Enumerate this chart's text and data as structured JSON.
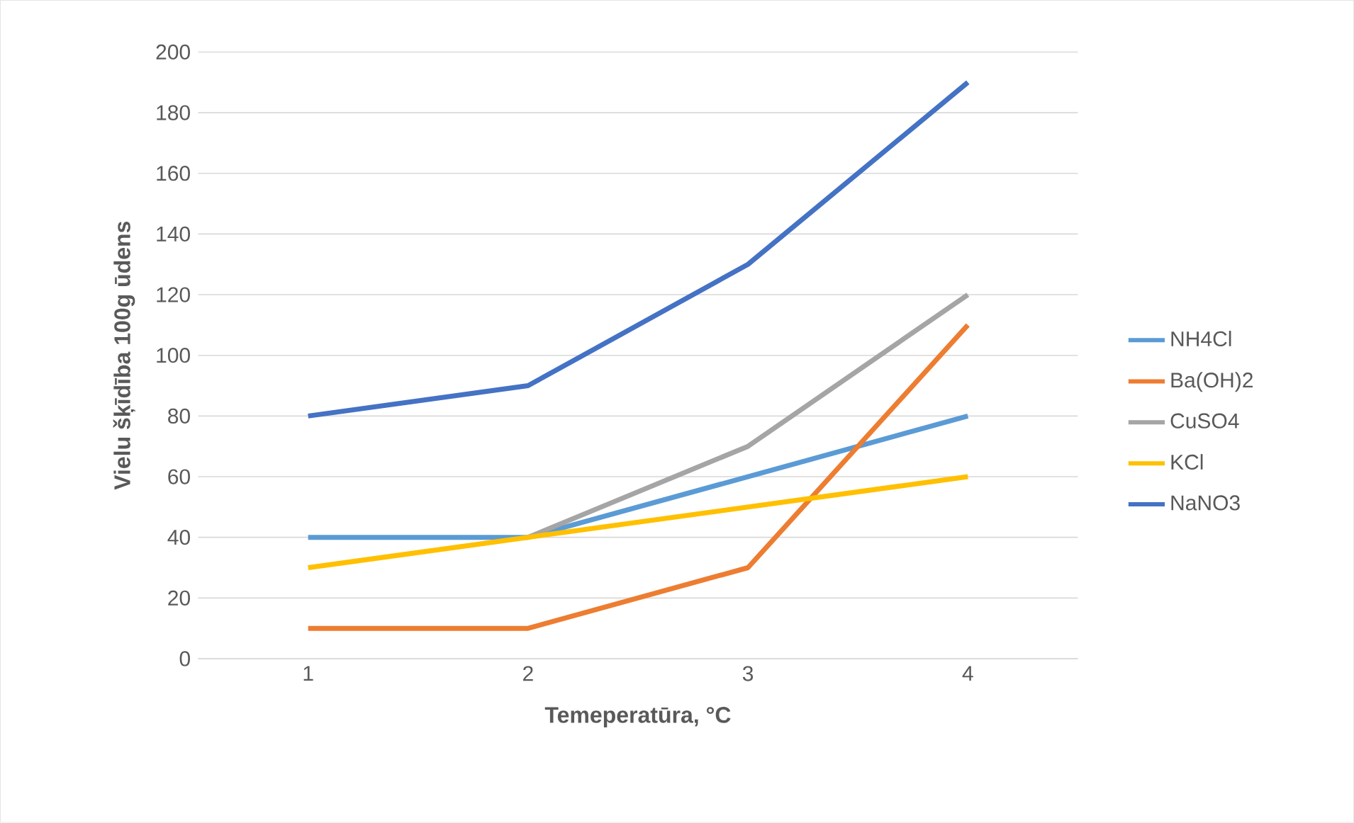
{
  "chart_data": {
    "type": "line",
    "xlabel": "Temeperatūra, °C",
    "ylabel": "Vielu šķīdība 100g ūdens",
    "categories": [
      "1",
      "2",
      "3",
      "4"
    ],
    "series": [
      {
        "name": "NH4Cl",
        "color": "#5b9bd5",
        "values": [
          40,
          40,
          60,
          80
        ]
      },
      {
        "name": "Ba(OH)2",
        "color": "#ed7d31",
        "values": [
          10,
          10,
          30,
          110
        ]
      },
      {
        "name": "CuSO4",
        "color": "#a5a5a5",
        "values": [
          null,
          40,
          70,
          120
        ]
      },
      {
        "name": "KCl",
        "color": "#ffc000",
        "values": [
          30,
          40,
          50,
          60
        ]
      },
      {
        "name": "NaNO3",
        "color": "#4472c4",
        "values": [
          80,
          90,
          130,
          190
        ]
      }
    ],
    "ylim": [
      0,
      200
    ],
    "yticks": [
      0,
      20,
      40,
      60,
      80,
      100,
      120,
      140,
      160,
      180,
      200
    ],
    "grid": "y",
    "legend": "right",
    "marker": "none",
    "line_style": "solid"
  }
}
